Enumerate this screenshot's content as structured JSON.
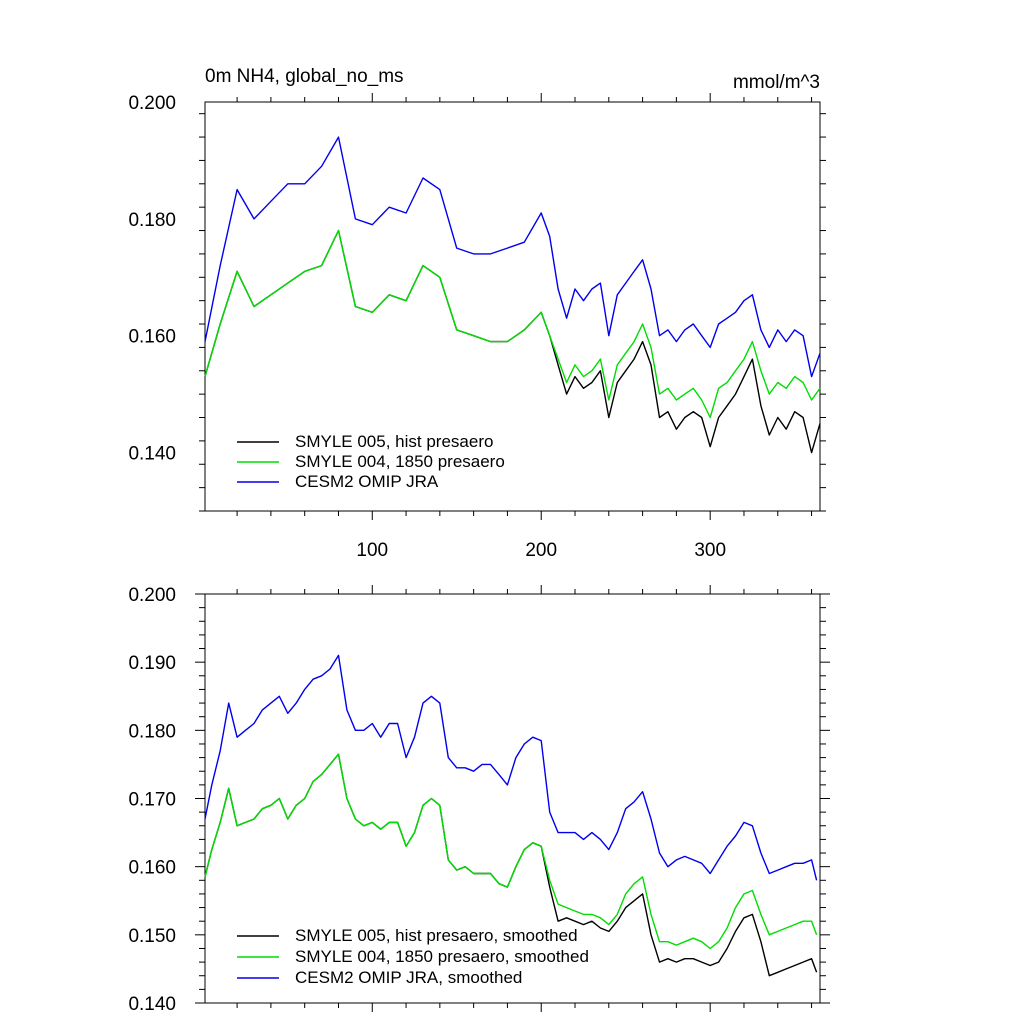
{
  "figure": {
    "title_left": "0m NH4, global_no_ms",
    "title_right": "mmol/m^3"
  },
  "chart_data": [
    {
      "type": "line",
      "panel": "top",
      "xlim": [
        1,
        365
      ],
      "ylim": [
        0.13,
        0.2
      ],
      "x_ticks": [
        100,
        200,
        300
      ],
      "x_tick_labels": [
        "100",
        "200",
        "300"
      ],
      "y_ticks": [
        0.14,
        0.16,
        0.18,
        0.2
      ],
      "y_tick_labels": [
        "0.140",
        "0.160",
        "0.180",
        "0.200"
      ],
      "grid": false,
      "legend_position": "bottom-left",
      "series": [
        {
          "name": "SMYLE 005, hist presaero",
          "color": "#000000",
          "x": [
            1,
            10,
            20,
            30,
            40,
            50,
            60,
            70,
            80,
            90,
            100,
            110,
            120,
            130,
            140,
            150,
            160,
            170,
            180,
            190,
            200,
            205,
            210,
            215,
            220,
            225,
            230,
            235,
            240,
            245,
            250,
            255,
            260,
            265,
            270,
            275,
            280,
            285,
            290,
            295,
            300,
            305,
            310,
            315,
            320,
            325,
            330,
            335,
            340,
            345,
            350,
            355,
            360,
            365
          ],
          "y": [
            0.153,
            0.162,
            0.171,
            0.165,
            0.167,
            0.169,
            0.171,
            0.172,
            0.178,
            0.165,
            0.164,
            0.167,
            0.166,
            0.172,
            0.17,
            0.161,
            0.16,
            0.159,
            0.159,
            0.161,
            0.164,
            0.16,
            0.155,
            0.15,
            0.153,
            0.151,
            0.152,
            0.154,
            0.146,
            0.152,
            0.154,
            0.156,
            0.159,
            0.155,
            0.146,
            0.147,
            0.144,
            0.146,
            0.147,
            0.146,
            0.141,
            0.146,
            0.148,
            0.15,
            0.153,
            0.156,
            0.148,
            0.143,
            0.146,
            0.144,
            0.147,
            0.146,
            0.14,
            0.145
          ]
        },
        {
          "name": "SMYLE 004, 1850 presaero",
          "color": "#00dd00",
          "x": [
            1,
            10,
            20,
            30,
            40,
            50,
            60,
            70,
            80,
            90,
            100,
            110,
            120,
            130,
            140,
            150,
            160,
            170,
            180,
            190,
            200,
            205,
            210,
            215,
            220,
            225,
            230,
            235,
            240,
            245,
            250,
            255,
            260,
            265,
            270,
            275,
            280,
            285,
            290,
            295,
            300,
            305,
            310,
            315,
            320,
            325,
            330,
            335,
            340,
            345,
            350,
            355,
            360,
            365
          ],
          "y": [
            0.153,
            0.162,
            0.171,
            0.165,
            0.167,
            0.169,
            0.171,
            0.172,
            0.178,
            0.165,
            0.164,
            0.167,
            0.166,
            0.172,
            0.17,
            0.161,
            0.16,
            0.159,
            0.159,
            0.161,
            0.164,
            0.16,
            0.156,
            0.152,
            0.155,
            0.153,
            0.154,
            0.156,
            0.149,
            0.155,
            0.157,
            0.159,
            0.162,
            0.158,
            0.15,
            0.151,
            0.149,
            0.15,
            0.151,
            0.149,
            0.146,
            0.151,
            0.152,
            0.154,
            0.156,
            0.159,
            0.154,
            0.15,
            0.152,
            0.151,
            0.153,
            0.152,
            0.149,
            0.151
          ]
        },
        {
          "name": "CESM2 OMIP JRA",
          "color": "#0000ee",
          "x": [
            1,
            10,
            20,
            30,
            40,
            50,
            60,
            70,
            80,
            90,
            100,
            110,
            120,
            130,
            140,
            150,
            160,
            170,
            180,
            190,
            200,
            205,
            210,
            215,
            220,
            225,
            230,
            235,
            240,
            245,
            250,
            255,
            260,
            265,
            270,
            275,
            280,
            285,
            290,
            295,
            300,
            305,
            310,
            315,
            320,
            325,
            330,
            335,
            340,
            345,
            350,
            355,
            360,
            365
          ],
          "y": [
            0.159,
            0.172,
            0.185,
            0.18,
            0.183,
            0.186,
            0.186,
            0.189,
            0.194,
            0.18,
            0.179,
            0.182,
            0.181,
            0.187,
            0.185,
            0.175,
            0.174,
            0.174,
            0.175,
            0.176,
            0.181,
            0.177,
            0.168,
            0.163,
            0.168,
            0.166,
            0.168,
            0.169,
            0.16,
            0.167,
            0.169,
            0.171,
            0.173,
            0.168,
            0.16,
            0.161,
            0.159,
            0.161,
            0.162,
            0.16,
            0.158,
            0.162,
            0.163,
            0.164,
            0.166,
            0.167,
            0.161,
            0.158,
            0.161,
            0.159,
            0.161,
            0.16,
            0.153,
            0.157
          ]
        }
      ]
    },
    {
      "type": "line",
      "panel": "bottom",
      "xlim": [
        1,
        365
      ],
      "ylim": [
        0.14,
        0.2
      ],
      "x_ticks": [
        100,
        200,
        300
      ],
      "x_tick_labels": [
        "",
        "",
        ""
      ],
      "y_ticks": [
        0.14,
        0.15,
        0.16,
        0.17,
        0.18,
        0.19,
        0.2
      ],
      "y_tick_labels": [
        "0.140",
        "0.150",
        "0.160",
        "0.170",
        "0.180",
        "0.190",
        "0.200"
      ],
      "grid": false,
      "legend_position": "bottom-left",
      "series": [
        {
          "name": "SMYLE 005, hist presaero, smoothed",
          "color": "#000000",
          "x": [
            1,
            5,
            10,
            15,
            20,
            25,
            30,
            35,
            40,
            45,
            50,
            55,
            60,
            65,
            70,
            75,
            80,
            85,
            90,
            95,
            100,
            105,
            110,
            115,
            120,
            125,
            130,
            135,
            140,
            145,
            150,
            155,
            160,
            165,
            170,
            175,
            180,
            185,
            190,
            195,
            200,
            205,
            210,
            215,
            220,
            225,
            230,
            235,
            240,
            245,
            250,
            255,
            260,
            265,
            270,
            275,
            280,
            285,
            290,
            295,
            300,
            305,
            310,
            315,
            320,
            325,
            330,
            335,
            340,
            345,
            350,
            355,
            360,
            363
          ],
          "y": [
            0.1585,
            0.1625,
            0.1665,
            0.1715,
            0.166,
            0.1665,
            0.167,
            0.1685,
            0.169,
            0.17,
            0.167,
            0.169,
            0.17,
            0.1725,
            0.1735,
            0.175,
            0.1765,
            0.17,
            0.167,
            0.166,
            0.1665,
            0.1655,
            0.1665,
            0.1665,
            0.163,
            0.165,
            0.169,
            0.17,
            0.169,
            0.161,
            0.1595,
            0.16,
            0.159,
            0.159,
            0.159,
            0.1575,
            0.157,
            0.16,
            0.1625,
            0.1635,
            0.163,
            0.157,
            0.152,
            0.1525,
            0.152,
            0.1515,
            0.152,
            0.151,
            0.1505,
            0.152,
            0.154,
            0.155,
            0.156,
            0.15,
            0.146,
            0.1465,
            0.146,
            0.1465,
            0.1465,
            0.146,
            0.1455,
            0.146,
            0.148,
            0.1505,
            0.1525,
            0.153,
            0.149,
            0.144,
            0.1445,
            0.145,
            0.1455,
            0.146,
            0.1465,
            0.1445
          ]
        },
        {
          "name": "SMYLE 004, 1850 presaero, smoothed",
          "color": "#00dd00",
          "x": [
            1,
            5,
            10,
            15,
            20,
            25,
            30,
            35,
            40,
            45,
            50,
            55,
            60,
            65,
            70,
            75,
            80,
            85,
            90,
            95,
            100,
            105,
            110,
            115,
            120,
            125,
            130,
            135,
            140,
            145,
            150,
            155,
            160,
            165,
            170,
            175,
            180,
            185,
            190,
            195,
            200,
            205,
            210,
            215,
            220,
            225,
            230,
            235,
            240,
            245,
            250,
            255,
            260,
            265,
            270,
            275,
            280,
            285,
            290,
            295,
            300,
            305,
            310,
            315,
            320,
            325,
            330,
            335,
            340,
            345,
            350,
            355,
            360,
            363
          ],
          "y": [
            0.1585,
            0.1625,
            0.1665,
            0.1715,
            0.166,
            0.1665,
            0.167,
            0.1685,
            0.169,
            0.17,
            0.167,
            0.169,
            0.17,
            0.1725,
            0.1735,
            0.175,
            0.1765,
            0.17,
            0.167,
            0.166,
            0.1665,
            0.1655,
            0.1665,
            0.1665,
            0.163,
            0.165,
            0.169,
            0.17,
            0.169,
            0.161,
            0.1595,
            0.16,
            0.159,
            0.159,
            0.159,
            0.1575,
            0.157,
            0.16,
            0.1625,
            0.1635,
            0.163,
            0.158,
            0.1545,
            0.154,
            0.1535,
            0.153,
            0.153,
            0.1525,
            0.1515,
            0.153,
            0.156,
            0.1575,
            0.1585,
            0.153,
            0.149,
            0.149,
            0.1485,
            0.149,
            0.1495,
            0.149,
            0.148,
            0.149,
            0.151,
            0.154,
            0.156,
            0.1565,
            0.153,
            0.15,
            0.1505,
            0.151,
            0.1515,
            0.152,
            0.152,
            0.15
          ]
        },
        {
          "name": "CESM2 OMIP JRA, smoothed",
          "color": "#0000ee",
          "x": [
            1,
            5,
            10,
            15,
            20,
            25,
            30,
            35,
            40,
            45,
            50,
            55,
            60,
            65,
            70,
            75,
            80,
            85,
            90,
            95,
            100,
            105,
            110,
            115,
            120,
            125,
            130,
            135,
            140,
            145,
            150,
            155,
            160,
            165,
            170,
            175,
            180,
            185,
            190,
            195,
            200,
            205,
            210,
            215,
            220,
            225,
            230,
            235,
            240,
            245,
            250,
            255,
            260,
            265,
            270,
            275,
            280,
            285,
            290,
            295,
            300,
            305,
            310,
            315,
            320,
            325,
            330,
            335,
            340,
            345,
            350,
            355,
            360,
            363
          ],
          "y": [
            0.167,
            0.172,
            0.177,
            0.184,
            0.179,
            0.18,
            0.181,
            0.183,
            0.184,
            0.185,
            0.1825,
            0.184,
            0.186,
            0.1875,
            0.188,
            0.189,
            0.191,
            0.183,
            0.18,
            0.18,
            0.181,
            0.179,
            0.181,
            0.181,
            0.176,
            0.179,
            0.184,
            0.185,
            0.184,
            0.176,
            0.1745,
            0.1745,
            0.174,
            0.175,
            0.175,
            0.1735,
            0.172,
            0.176,
            0.178,
            0.179,
            0.1785,
            0.168,
            0.165,
            0.165,
            0.165,
            0.164,
            0.165,
            0.164,
            0.1625,
            0.165,
            0.1685,
            0.1695,
            0.171,
            0.167,
            0.162,
            0.16,
            0.161,
            0.1615,
            0.161,
            0.1605,
            0.159,
            0.161,
            0.163,
            0.1645,
            0.1665,
            0.166,
            0.162,
            0.159,
            0.1595,
            0.16,
            0.1605,
            0.1605,
            0.161,
            0.158
          ]
        }
      ]
    }
  ]
}
